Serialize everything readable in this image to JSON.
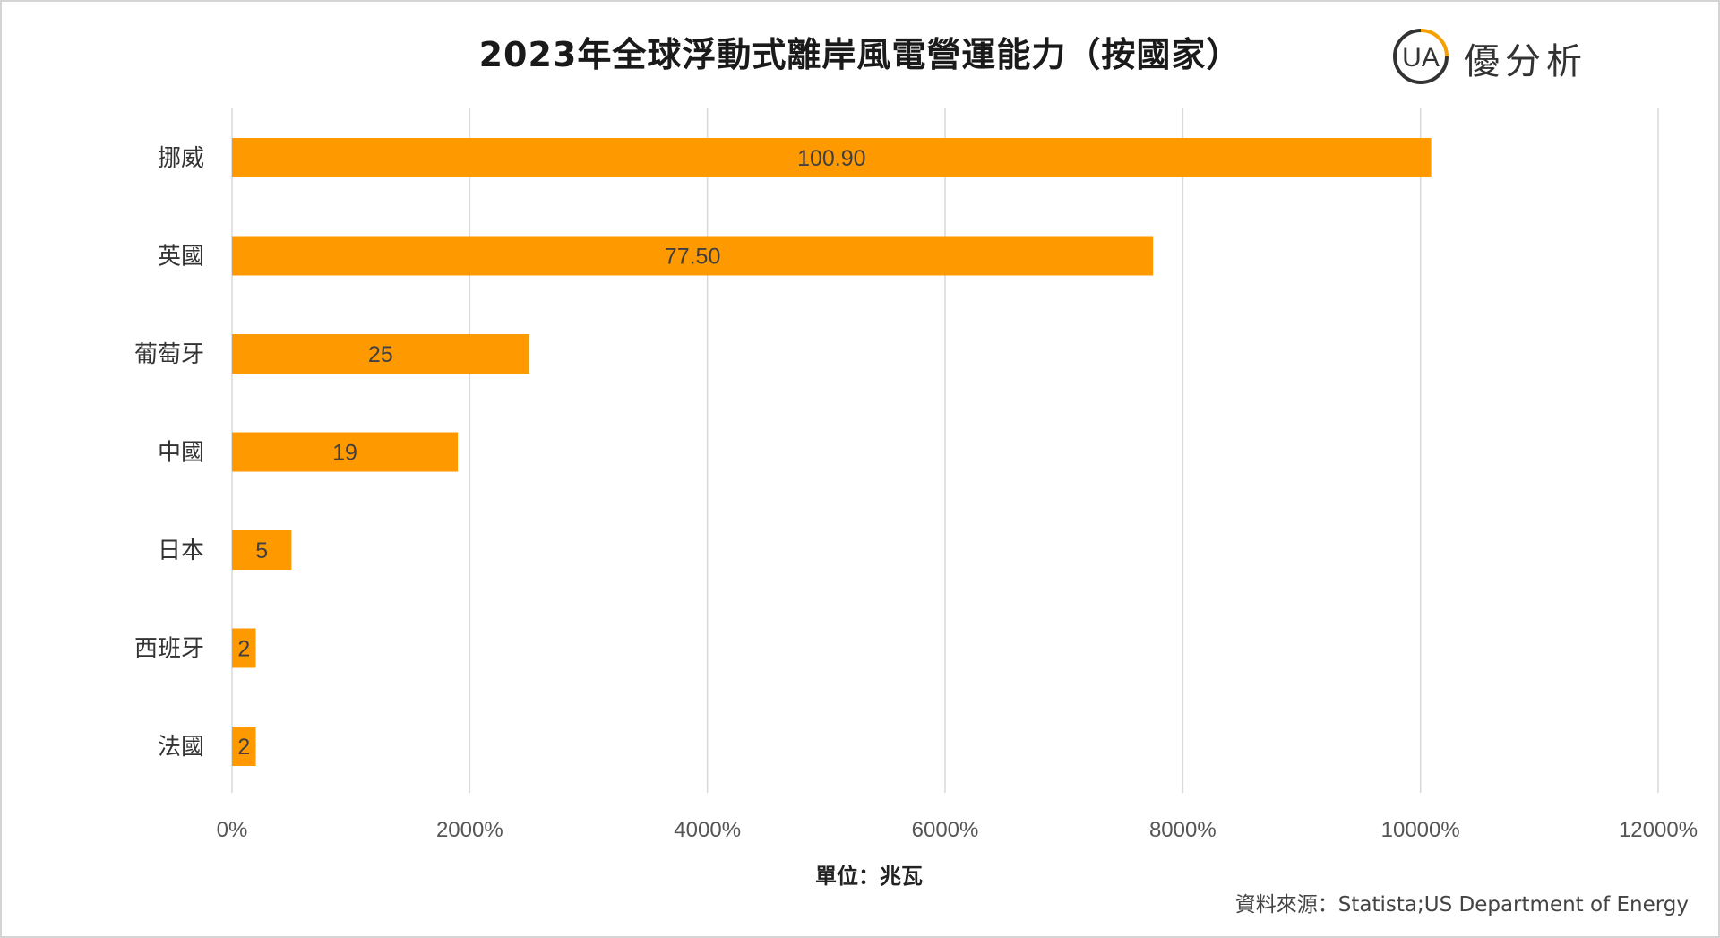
{
  "brand": {
    "name": "優分析",
    "logo_letters": "UA",
    "accent_color": "#F5A000"
  },
  "footer": {
    "unit_label": "單位：兆瓦",
    "source": "資料來源：Statista;US Department of Energy"
  },
  "chart_data": {
    "type": "bar",
    "orientation": "horizontal",
    "title": "2023年全球浮動式離岸風電營運能力（按國家）",
    "categories": [
      "挪威",
      "英國",
      "葡萄牙",
      "中國",
      "日本",
      "西班牙",
      "法國"
    ],
    "values": [
      100.9,
      77.5,
      25,
      19,
      5,
      2,
      2
    ],
    "data_labels": [
      "100.90",
      "77.50",
      "25",
      "19",
      "5",
      "2",
      "2"
    ],
    "xlim": [
      0,
      120
    ],
    "x_ticks": [
      0,
      20,
      40,
      60,
      80,
      100,
      120
    ],
    "x_tick_labels": [
      "0%",
      "2000%",
      "4000%",
      "6000%",
      "8000%",
      "10000%",
      "12000%"
    ],
    "xlabel": "單位：兆瓦",
    "bar_color": "#FF9900",
    "grid": true,
    "legend": "none"
  }
}
